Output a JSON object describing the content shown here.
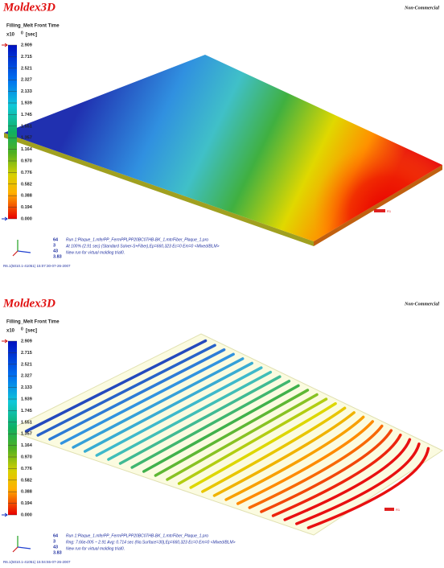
{
  "panels": [
    {
      "logo": "Moldex3D",
      "watermark": "Non-Commercial",
      "result_title": "Filling_Melt Front Time",
      "scale_prefix": "x10",
      "scale_exponent": "0",
      "unit": "[sec]",
      "legend_labels": [
        "2.909",
        "2.715",
        "2.521",
        "2.327",
        "2.133",
        "1.939",
        "1.745",
        "1.551",
        "1.357",
        "1.164",
        "0.970",
        "0.776",
        "0.582",
        "0.388",
        "0.194",
        "0.000"
      ],
      "info_numbers": [
        "64",
        "3",
        "43",
        "3.83"
      ],
      "info_lines": [
        "Run 1:Plaque_1.mfe/PP_FermPPLPP20BC07HB-BK_1.mtr/Fiber_Plaque_1.pro",
        "At 100% (2.91 sec) (Standard Solver-S+Fiber),Ep=660,323 Ec=0 Em=0 <Mixed/BLM>",
        "New run for virtual molding trial0."
      ],
      "timestamp": "R6.1(5010.1-41051) 15:07:30-07-26-2007",
      "gate_label": "R1"
    },
    {
      "logo": "Moldex3D",
      "watermark": "Non-Commercial",
      "result_title": "Filling_Melt Front Time",
      "scale_prefix": "x10",
      "scale_exponent": "0",
      "unit": "[sec]",
      "legend_labels": [
        "2.909",
        "2.715",
        "2.521",
        "2.327",
        "2.133",
        "1.939",
        "1.745",
        "1.551",
        "1.357",
        "1.164",
        "0.970",
        "0.776",
        "0.582",
        "0.388",
        "0.194",
        "0.000"
      ],
      "info_numbers": [
        "64",
        "3",
        "43",
        "3.83"
      ],
      "info_lines": [
        "Run 1:Plaque_1.mfe/PP_FermPPLPP20BC07HB-BK_1.mtr/Fiber_Plaque_1.pro",
        "Rng: 7.66e-005 ~ 2.91   Avg: 0.714 sec  (No.Surface=30),Ep=660,323 Ec=0 Em=0 <Mixed/BLM>",
        "New run for virtual molding trial0."
      ],
      "timestamp": "R6.1(5010.1-41051) 15:04:55-07-26-2007",
      "gate_label": "R1"
    }
  ]
}
